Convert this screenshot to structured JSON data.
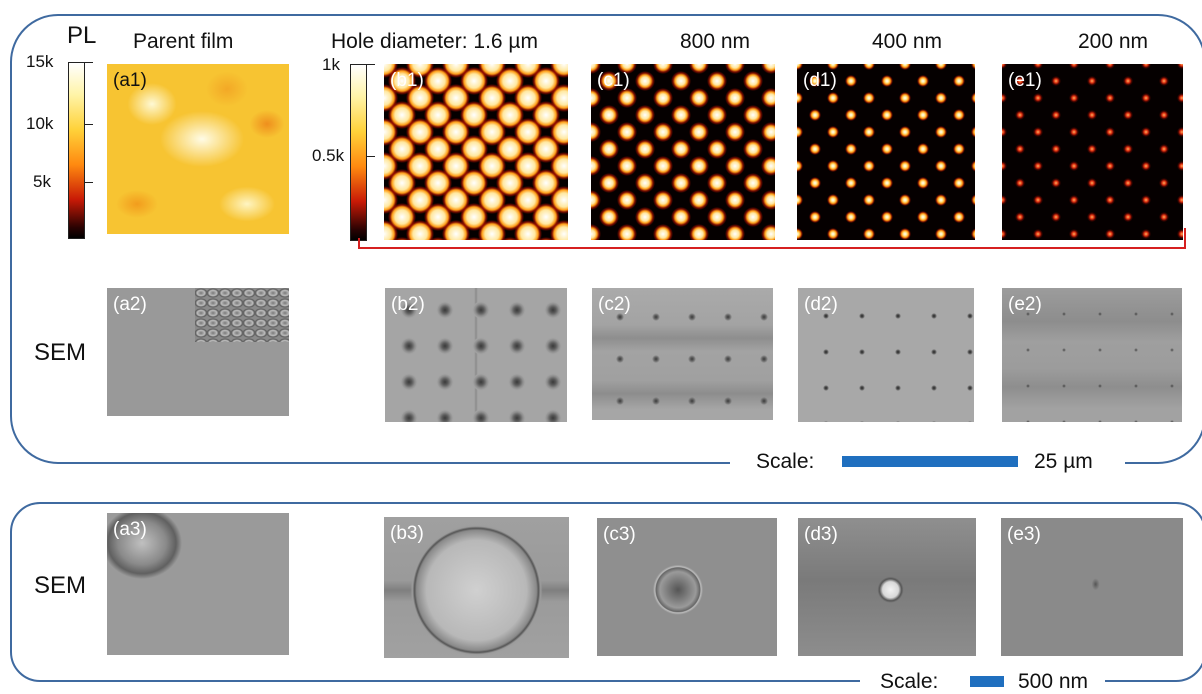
{
  "colorbar_labels": {
    "pl": "PL",
    "left_ticks": [
      "15k",
      "10k",
      "5k"
    ],
    "right_ticks": [
      "1k",
      "0.5k"
    ]
  },
  "column_headers": {
    "parent": "Parent film",
    "b": "Hole diameter: 1.6 µm",
    "c": "800 nm",
    "d": "400 nm",
    "e": "200 nm"
  },
  "row_labels": {
    "sem2": "SEM",
    "sem3": "SEM"
  },
  "panel_labels": {
    "a1": "(a1)",
    "b1": "(b1)",
    "c1": "(c1)",
    "d1": "(d1)",
    "e1": "(e1)",
    "a2": "(a2)",
    "b2": "(b2)",
    "c2": "(c2)",
    "d2": "(d2)",
    "e2": "(e2)",
    "a3": "(a3)",
    "b3": "(b3)",
    "c3": "(c3)",
    "d3": "(d3)",
    "e3": "(e3)"
  },
  "scales": {
    "scale1_label": "Scale:",
    "scale1_value": "25 µm",
    "scale2_label": "Scale:",
    "scale2_value": "500 nm"
  },
  "colors": {
    "frame": "#3f6aa0",
    "scalebar": "#1f6fbf",
    "bracket": "#d62020"
  }
}
